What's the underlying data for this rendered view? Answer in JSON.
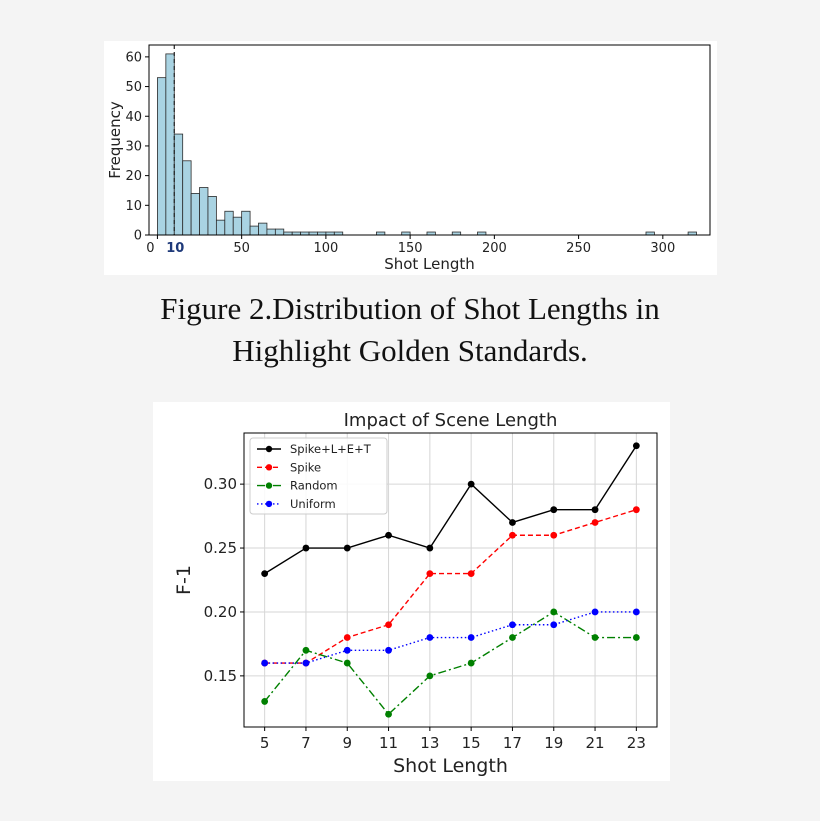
{
  "caption": {
    "line1": "Figure 2.Distribution of Shot Lengths in",
    "line2": "Highlight Golden Standards."
  },
  "chart_data": [
    {
      "type": "bar",
      "subtype": "histogram",
      "title": "",
      "xlabel": "Shot Length",
      "ylabel": "Frequency",
      "xlim": [
        -5,
        328
      ],
      "ylim": [
        0,
        64
      ],
      "xticks": [
        0,
        50,
        100,
        150,
        200,
        250,
        300
      ],
      "yticks": [
        0,
        10,
        20,
        30,
        40,
        50,
        60
      ],
      "marker_line": {
        "x": 10,
        "label": "10",
        "style": "dashed",
        "color": "#1f3a7a"
      },
      "bar_color": "#a9d3e2",
      "bar_edge_color": "#2b2b2b",
      "bin_width": 5,
      "bins": [
        {
          "x0": 0,
          "count": 53
        },
        {
          "x0": 5,
          "count": 61
        },
        {
          "x0": 10,
          "count": 34
        },
        {
          "x0": 15,
          "count": 25
        },
        {
          "x0": 20,
          "count": 14
        },
        {
          "x0": 25,
          "count": 16
        },
        {
          "x0": 30,
          "count": 13
        },
        {
          "x0": 35,
          "count": 5
        },
        {
          "x0": 40,
          "count": 8
        },
        {
          "x0": 45,
          "count": 6
        },
        {
          "x0": 50,
          "count": 8
        },
        {
          "x0": 55,
          "count": 3
        },
        {
          "x0": 60,
          "count": 4
        },
        {
          "x0": 65,
          "count": 2
        },
        {
          "x0": 70,
          "count": 2
        },
        {
          "x0": 75,
          "count": 1
        },
        {
          "x0": 80,
          "count": 1
        },
        {
          "x0": 85,
          "count": 1
        },
        {
          "x0": 90,
          "count": 1
        },
        {
          "x0": 95,
          "count": 1
        },
        {
          "x0": 100,
          "count": 1
        },
        {
          "x0": 105,
          "count": 1
        },
        {
          "x0": 130,
          "count": 1
        },
        {
          "x0": 145,
          "count": 1
        },
        {
          "x0": 160,
          "count": 1
        },
        {
          "x0": 175,
          "count": 1
        },
        {
          "x0": 190,
          "count": 1
        },
        {
          "x0": 290,
          "count": 1
        },
        {
          "x0": 315,
          "count": 1
        }
      ],
      "grid": false
    },
    {
      "type": "line",
      "title": "Impact of Scene Length",
      "xlabel": "Shot Length",
      "ylabel": "F-1",
      "x": [
        5,
        7,
        9,
        11,
        13,
        15,
        17,
        19,
        21,
        23
      ],
      "xlim": [
        4,
        24
      ],
      "ylim": [
        0.11,
        0.34
      ],
      "yticks": [
        0.15,
        0.2,
        0.25,
        0.3
      ],
      "ytick_labels": [
        "0.15",
        "0.20",
        "0.25",
        "0.30"
      ],
      "grid": true,
      "legend": "top-left",
      "series": [
        {
          "name": "Spike+L+E+T",
          "color": "#000000",
          "dash": "",
          "values": [
            0.23,
            0.25,
            0.25,
            0.26,
            0.25,
            0.3,
            0.27,
            0.28,
            0.28,
            0.33
          ]
        },
        {
          "name": "Spike",
          "color": "#ff0000",
          "dash": "5,3",
          "values": [
            0.16,
            0.16,
            0.18,
            0.19,
            0.23,
            0.23,
            0.26,
            0.26,
            0.27,
            0.28
          ]
        },
        {
          "name": "Random",
          "color": "#008000",
          "dash": "8,3,2,3",
          "values": [
            0.13,
            0.17,
            0.16,
            0.12,
            0.15,
            0.16,
            0.18,
            0.2,
            0.18,
            0.18
          ]
        },
        {
          "name": "Uniform",
          "color": "#0000ff",
          "dash": "1.5,2.5",
          "values": [
            0.16,
            0.16,
            0.17,
            0.17,
            0.18,
            0.18,
            0.19,
            0.19,
            0.2,
            0.2
          ]
        }
      ]
    }
  ]
}
